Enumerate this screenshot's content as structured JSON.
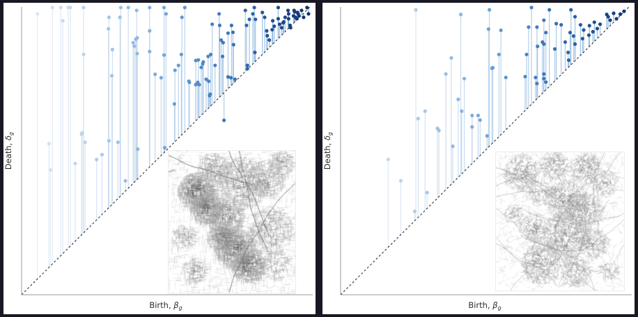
{
  "figure": {
    "description": "Two persistence diagrams (stem plots) of street networks with inset maps",
    "colors": {
      "frame_background": "#181824",
      "panel_background": "#ffffff",
      "spine": "#9a9a9a",
      "diagonal": "#1a1a1a",
      "label_text": "#2d2d2d"
    }
  },
  "chart_data": [
    {
      "type": "scatter",
      "subtype": "persistence-diagram-stems",
      "title": "",
      "xlabel": "Birth, βg",
      "ylabel": "Death, δg",
      "xlabel_parts": {
        "text": "Birth, ",
        "symbol": "β",
        "sub": "g"
      },
      "ylabel_parts": {
        "text": "Death, ",
        "symbol": "δ",
        "sub": "g"
      },
      "xlim": [
        0,
        1
      ],
      "ylim": [
        0,
        1
      ],
      "ticks": [],
      "grid": false,
      "diagonal_dashed": true,
      "colormap": {
        "name": "blues-by-birth",
        "stops": [
          [
            0,
            "#e2ecf7"
          ],
          [
            0.2,
            "#bdd4ec"
          ],
          [
            0.4,
            "#8fb9e0"
          ],
          [
            0.6,
            "#5a8fc9"
          ],
          [
            0.8,
            "#2a62ab"
          ],
          [
            1,
            "#10316b"
          ]
        ]
      },
      "points": [
        [
          0.055,
          0.976
        ],
        [
          0.107,
          0.998
        ],
        [
          0.136,
          0.998
        ],
        [
          0.143,
          0.952
        ],
        [
          0.162,
          0.998
        ],
        [
          0.169,
          0.998
        ],
        [
          0.215,
          0.998
        ],
        [
          0.215,
          0.835
        ],
        [
          0.208,
          0.558
        ],
        [
          0.22,
          0.53
        ],
        [
          0.095,
          0.525
        ],
        [
          0.1,
          0.434
        ],
        [
          0.186,
          0.456
        ],
        [
          0.21,
          0.563
        ],
        [
          0.26,
          0.47
        ],
        [
          0.279,
          0.487
        ],
        [
          0.303,
          0.964
        ],
        [
          0.301,
          0.924
        ],
        [
          0.315,
          0.852
        ],
        [
          0.313,
          0.761
        ],
        [
          0.303,
          0.535
        ],
        [
          0.334,
          0.53
        ],
        [
          0.341,
          0.964
        ],
        [
          0.344,
          0.998
        ],
        [
          0.37,
          0.998
        ],
        [
          0.399,
          0.988
        ],
        [
          0.401,
          0.893
        ],
        [
          0.387,
          0.876
        ],
        [
          0.391,
          0.864
        ],
        [
          0.401,
          0.838
        ],
        [
          0.396,
          0.888
        ],
        [
          0.36,
          0.396
        ],
        [
          0.403,
          0.506
        ],
        [
          0.444,
          0.998
        ],
        [
          0.444,
          0.845
        ],
        [
          0.444,
          0.917
        ],
        [
          0.463,
          0.766
        ],
        [
          0.484,
          0.754
        ],
        [
          0.494,
          0.998
        ],
        [
          0.494,
          0.833
        ],
        [
          0.496,
          0.511
        ],
        [
          0.501,
          0.976
        ],
        [
          0.566,
          0.998
        ],
        [
          0.556,
          0.964
        ],
        [
          0.532,
          0.78
        ],
        [
          0.544,
          0.797
        ],
        [
          0.554,
          0.835
        ],
        [
          0.53,
          0.663
        ],
        [
          0.58,
          0.742
        ],
        [
          0.582,
          0.738
        ],
        [
          0.604,
          0.814
        ],
        [
          0.613,
          0.816
        ],
        [
          0.628,
          0.802
        ],
        [
          0.604,
          0.73
        ],
        [
          0.616,
          0.73
        ],
        [
          0.611,
          0.738
        ],
        [
          0.623,
          0.79
        ],
        [
          0.63,
          0.809
        ],
        [
          0.64,
          0.749
        ],
        [
          0.649,
          0.742
        ],
        [
          0.652,
          0.692
        ],
        [
          0.654,
          0.697
        ],
        [
          0.661,
          0.94
        ],
        [
          0.656,
          0.835
        ],
        [
          0.647,
          0.828
        ],
        [
          0.671,
          0.797
        ],
        [
          0.685,
          0.976
        ],
        [
          0.687,
          0.936
        ],
        [
          0.692,
          0.885
        ],
        [
          0.697,
          0.828
        ],
        [
          0.699,
          0.876
        ],
        [
          0.702,
          0.606
        ],
        [
          0.716,
          0.909
        ],
        [
          0.716,
          0.757
        ],
        [
          0.728,
          0.936
        ],
        [
          0.733,
          0.912
        ],
        [
          0.735,
          0.869
        ],
        [
          0.74,
          0.749
        ],
        [
          0.726,
          0.754
        ],
        [
          0.776,
          0.988
        ],
        [
          0.78,
          0.936
        ],
        [
          0.79,
          0.957
        ],
        [
          0.802,
          0.976
        ],
        [
          0.807,
          0.998
        ],
        [
          0.811,
          0.957
        ],
        [
          0.783,
          0.797
        ],
        [
          0.783,
          0.785
        ],
        [
          0.809,
          0.842
        ],
        [
          0.835,
          0.981
        ],
        [
          0.843,
          0.964
        ],
        [
          0.85,
          0.917
        ],
        [
          0.852,
          0.9
        ],
        [
          0.859,
          0.885
        ],
        [
          0.869,
          0.921
        ],
        [
          0.871,
          0.952
        ],
        [
          0.876,
          0.933
        ],
        [
          0.89,
          0.998
        ],
        [
          0.89,
          0.959
        ],
        [
          0.895,
          0.94
        ],
        [
          0.902,
          0.928
        ],
        [
          0.907,
          0.945
        ],
        [
          0.909,
          0.948
        ],
        [
          0.914,
          0.964
        ],
        [
          0.924,
          0.988
        ],
        [
          0.926,
          0.959
        ],
        [
          0.926,
          0.976
        ],
        [
          0.931,
          0.936
        ],
        [
          0.933,
          0.928
        ],
        [
          0.943,
          0.969
        ],
        [
          0.945,
          0.988
        ],
        [
          0.947,
          0.983
        ],
        [
          0.95,
          0.964
        ],
        [
          0.955,
          0.959
        ],
        [
          0.957,
          0.981
        ],
        [
          0.959,
          0.976
        ],
        [
          0.962,
          0.969
        ],
        [
          0.971,
          0.988
        ],
        [
          0.978,
          0.964
        ],
        [
          0.99,
          0.998
        ],
        [
          0.995,
          0.976
        ]
      ],
      "inset": {
        "kind": "street-network-map",
        "style": "grid",
        "seed": 42,
        "base_segments": 1500,
        "roads": 5,
        "clusters": [
          {
            "x": 0.22,
            "y": 0.28,
            "r": 0.15,
            "dark": 0.92
          },
          {
            "x": 0.3,
            "y": 0.4,
            "r": 0.13,
            "dark": 0.85
          },
          {
            "x": 0.45,
            "y": 0.46,
            "r": 0.15,
            "dark": 0.62
          },
          {
            "x": 0.58,
            "y": 0.22,
            "r": 0.2,
            "dark": 0.45
          },
          {
            "x": 0.76,
            "y": 0.2,
            "r": 0.15,
            "dark": 0.4
          },
          {
            "x": 0.52,
            "y": 0.68,
            "r": 0.16,
            "dark": 0.88
          },
          {
            "x": 0.63,
            "y": 0.8,
            "r": 0.14,
            "dark": 0.82
          },
          {
            "x": 0.42,
            "y": 0.6,
            "r": 0.12,
            "dark": 0.7
          },
          {
            "x": 0.8,
            "y": 0.55,
            "r": 0.18,
            "dark": 0.35
          },
          {
            "x": 0.85,
            "y": 0.8,
            "r": 0.12,
            "dark": 0.3
          },
          {
            "x": 0.12,
            "y": 0.6,
            "r": 0.1,
            "dark": 0.35
          },
          {
            "x": 0.2,
            "y": 0.84,
            "r": 0.1,
            "dark": 0.42
          },
          {
            "x": 0.88,
            "y": 0.08,
            "r": 0.1,
            "dark": 0.45
          },
          {
            "x": 0.35,
            "y": 0.12,
            "r": 0.12,
            "dark": 0.5
          }
        ]
      }
    },
    {
      "type": "scatter",
      "subtype": "persistence-diagram-stems",
      "title": "",
      "xlabel": "Birth, βg",
      "ylabel": "Death, δg",
      "xlabel_parts": {
        "text": "Birth, ",
        "symbol": "β",
        "sub": "g"
      },
      "ylabel_parts": {
        "text": "Death, ",
        "symbol": "δ",
        "sub": "g"
      },
      "xlim": [
        0,
        1
      ],
      "ylim": [
        0,
        1
      ],
      "ticks": [],
      "grid": false,
      "diagonal_dashed": true,
      "colormap": {
        "name": "blues-by-birth",
        "stops": [
          [
            0,
            "#e2ecf7"
          ],
          [
            0.2,
            "#bdd4ec"
          ],
          [
            0.4,
            "#8fb9e0"
          ],
          [
            0.6,
            "#5a8fc9"
          ],
          [
            0.8,
            "#2a62ab"
          ],
          [
            1,
            "#10316b"
          ]
        ]
      },
      "points": [
        [
          0.261,
          0.99
        ],
        [
          0.417,
          0.974
        ],
        [
          0.516,
          0.99
        ],
        [
          0.662,
          0.998
        ],
        [
          0.724,
          0.99
        ],
        [
          0.799,
          0.99
        ],
        [
          0.513,
          0.923
        ],
        [
          0.556,
          0.919
        ],
        [
          0.652,
          0.93
        ],
        [
          0.681,
          0.93
        ],
        [
          0.705,
          0.954
        ],
        [
          0.712,
          0.911
        ],
        [
          0.748,
          0.942
        ],
        [
          0.765,
          0.938
        ],
        [
          0.796,
          0.911
        ],
        [
          0.808,
          0.899
        ],
        [
          0.813,
          0.966
        ],
        [
          0.832,
          0.938
        ],
        [
          0.839,
          0.89
        ],
        [
          0.861,
          0.902
        ],
        [
          0.863,
          0.935
        ],
        [
          0.875,
          0.914
        ],
        [
          0.88,
          0.947
        ],
        [
          0.923,
          0.974
        ],
        [
          0.928,
          0.966
        ],
        [
          0.935,
          0.954
        ],
        [
          0.947,
          0.978
        ],
        [
          0.957,
          0.959
        ],
        [
          0.97,
          0.975
        ],
        [
          0.983,
          0.985
        ],
        [
          0.683,
          0.863
        ],
        [
          0.7,
          0.878
        ],
        [
          0.705,
          0.871
        ],
        [
          0.743,
          0.854
        ],
        [
          0.779,
          0.878
        ],
        [
          0.789,
          0.842
        ],
        [
          0.791,
          0.815
        ],
        [
          0.813,
          0.871
        ],
        [
          0.549,
          0.835
        ],
        [
          0.525,
          0.787
        ],
        [
          0.573,
          0.755
        ],
        [
          0.645,
          0.835
        ],
        [
          0.64,
          0.758
        ],
        [
          0.676,
          0.755
        ],
        [
          0.681,
          0.734
        ],
        [
          0.705,
          0.767
        ],
        [
          0.705,
          0.751
        ],
        [
          0.712,
          0.739
        ],
        [
          0.384,
          0.823
        ],
        [
          0.365,
          0.767
        ],
        [
          0.429,
          0.751
        ],
        [
          0.408,
          0.679
        ],
        [
          0.42,
          0.638
        ],
        [
          0.456,
          0.623
        ],
        [
          0.477,
          0.623
        ],
        [
          0.456,
          0.583
        ],
        [
          0.484,
          0.607
        ],
        [
          0.508,
          0.552
        ],
        [
          0.528,
          0.789
        ],
        [
          0.341,
          0.571
        ],
        [
          0.389,
          0.516
        ],
        [
          0.269,
          0.612
        ],
        [
          0.293,
          0.638
        ],
        [
          0.336,
          0.578
        ],
        [
          0.165,
          0.47
        ],
        [
          0.209,
          0.396
        ],
        [
          0.3,
          0.355
        ],
        [
          0.257,
          0.29
        ],
        [
          0.9,
          0.94
        ],
        [
          0.89,
          0.925
        ],
        [
          0.843,
          0.92
        ]
      ],
      "inset": {
        "kind": "street-network-map",
        "style": "organic",
        "seed": 99,
        "base_segments": 900,
        "roads": 16,
        "clusters": [
          {
            "x": 0.2,
            "y": 0.15,
            "r": 0.14,
            "dark": 0.58
          },
          {
            "x": 0.45,
            "y": 0.1,
            "r": 0.12,
            "dark": 0.52
          },
          {
            "x": 0.7,
            "y": 0.12,
            "r": 0.12,
            "dark": 0.56
          },
          {
            "x": 0.85,
            "y": 0.22,
            "r": 0.1,
            "dark": 0.5
          },
          {
            "x": 0.55,
            "y": 0.35,
            "r": 0.16,
            "dark": 0.62
          },
          {
            "x": 0.7,
            "y": 0.42,
            "r": 0.14,
            "dark": 0.56
          },
          {
            "x": 0.35,
            "y": 0.3,
            "r": 0.1,
            "dark": 0.46
          },
          {
            "x": 0.3,
            "y": 0.55,
            "r": 0.12,
            "dark": 0.5
          },
          {
            "x": 0.55,
            "y": 0.6,
            "r": 0.18,
            "dark": 0.62
          },
          {
            "x": 0.76,
            "y": 0.66,
            "r": 0.12,
            "dark": 0.52
          },
          {
            "x": 0.36,
            "y": 0.8,
            "r": 0.16,
            "dark": 0.6
          },
          {
            "x": 0.62,
            "y": 0.86,
            "r": 0.12,
            "dark": 0.52
          },
          {
            "x": 0.14,
            "y": 0.45,
            "r": 0.08,
            "dark": 0.4
          },
          {
            "x": 0.88,
            "y": 0.86,
            "r": 0.08,
            "dark": 0.46
          }
        ]
      }
    }
  ]
}
